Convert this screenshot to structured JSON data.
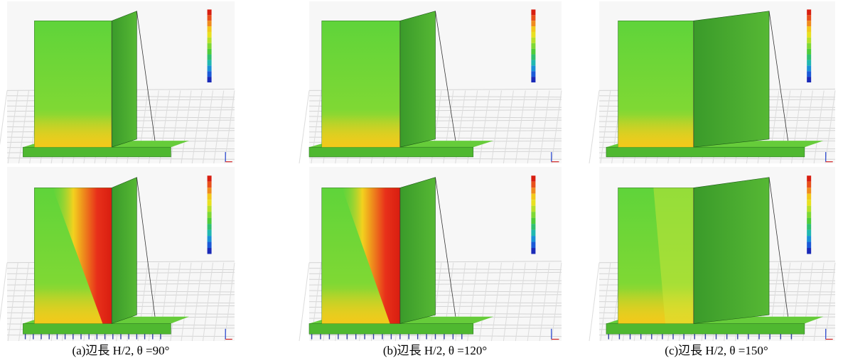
{
  "captions": [
    "(a)辺長 H/2, θ =90°",
    "(b)辺長 H/2, θ =120°",
    "(c)辺長 H/2, θ =150°"
  ]
}
